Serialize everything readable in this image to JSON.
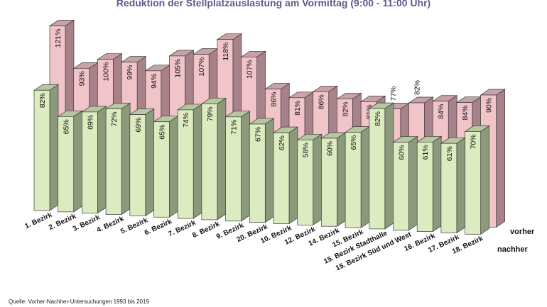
{
  "chart_data": {
    "type": "bar",
    "style": "3d-grouped",
    "title": "Reduktion der Stellplatzauslastung am Vormittag (9:00 - 11:00 Uhr)",
    "categories": [
      "1. Bezirk",
      "2. Bezirk",
      "3. Bezirk",
      "4. Bezirk",
      "5. Bezirk",
      "6. Bezirk",
      "7. Bezirk",
      "8. Bezirk",
      "9. Bezirk",
      "20. Bezirk",
      "10. Bezirk",
      "12. Bezirk",
      "14. Bezirk",
      "15. Bezirk",
      "15. Bezirk Stadthalle",
      "15. Bezirk Süd und West",
      "16. Bezirk",
      "17. Bezirk",
      "18. Bezirk"
    ],
    "series": [
      {
        "name": "vorher",
        "color": "#f0c4c8",
        "values": [
          121,
          93,
          100,
          99,
          94,
          105,
          107,
          118,
          107,
          86,
          81,
          86,
          82,
          81,
          77,
          82,
          84,
          84,
          90
        ]
      },
      {
        "name": "nachher",
        "color": "#dcebc0",
        "values": [
          82,
          65,
          69,
          72,
          69,
          65,
          74,
          79,
          71,
          67,
          62,
          58,
          60,
          65,
          82,
          60,
          61,
          61,
          70
        ]
      }
    ],
    "value_suffix": "%",
    "legend_placement": "bottom-right",
    "grid": false
  },
  "source": "Quelle:  Vorher-Nachher-Untersuchungen  1993 bis 2019"
}
